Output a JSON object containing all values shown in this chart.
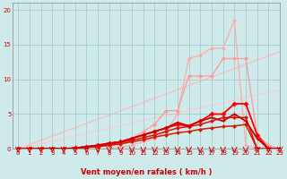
{
  "title": "",
  "xlabel": "Vent moyen/en rafales ( km/h )",
  "ylabel": "",
  "bg_color": "#ceeaea",
  "grid_color": "#aacccc",
  "xlim": [
    -0.5,
    23
  ],
  "ylim": [
    0,
    21
  ],
  "xticks": [
    0,
    1,
    2,
    3,
    4,
    5,
    6,
    7,
    8,
    9,
    10,
    11,
    12,
    13,
    14,
    15,
    16,
    17,
    18,
    19,
    20,
    21,
    22,
    23
  ],
  "yticks": [
    0,
    5,
    10,
    15,
    20
  ],
  "series": [
    {
      "x": [
        0,
        23
      ],
      "y": [
        0,
        14.0
      ],
      "color": "#ffbbbb",
      "lw": 0.9,
      "marker": null,
      "ms": 0,
      "zorder": 1
    },
    {
      "x": [
        0,
        23
      ],
      "y": [
        0,
        8.5
      ],
      "color": "#ffcccc",
      "lw": 0.9,
      "marker": null,
      "ms": 0,
      "zorder": 1
    },
    {
      "x": [
        0,
        1,
        2,
        3,
        4,
        5,
        6,
        7,
        8,
        9,
        10,
        11,
        12,
        13,
        14,
        15,
        16,
        17,
        18,
        19,
        20,
        21,
        22,
        23
      ],
      "y": [
        0,
        0,
        0,
        0,
        0,
        0,
        0,
        0,
        0,
        0.2,
        0.5,
        1.0,
        1.5,
        2.5,
        5.0,
        13.0,
        13.5,
        14.5,
        14.5,
        18.5,
        0.5,
        0,
        0,
        0
      ],
      "color": "#ffaaaa",
      "lw": 0.9,
      "marker": "D",
      "ms": 2.0,
      "zorder": 2
    },
    {
      "x": [
        0,
        1,
        2,
        3,
        4,
        5,
        6,
        7,
        8,
        9,
        10,
        11,
        12,
        13,
        14,
        15,
        16,
        17,
        18,
        19,
        20,
        21,
        22,
        23
      ],
      "y": [
        0,
        0,
        0,
        0,
        0,
        0,
        0.2,
        0.3,
        0.5,
        0.8,
        1.5,
        2.5,
        3.5,
        5.5,
        5.5,
        10.5,
        10.5,
        10.5,
        13.0,
        13.0,
        13.0,
        2.0,
        0.5,
        0
      ],
      "color": "#ff9999",
      "lw": 0.9,
      "marker": "D",
      "ms": 2.0,
      "zorder": 2
    },
    {
      "x": [
        0,
        1,
        2,
        3,
        4,
        5,
        6,
        7,
        8,
        9,
        10,
        11,
        12,
        13,
        14,
        15,
        16,
        17,
        18,
        19,
        20,
        21,
        22,
        23
      ],
      "y": [
        0,
        0,
        0,
        0,
        0,
        0.1,
        0.2,
        0.3,
        0.5,
        0.7,
        1.0,
        1.3,
        1.7,
        2.0,
        2.3,
        2.5,
        2.8,
        3.0,
        3.2,
        3.3,
        3.5,
        0,
        0,
        0
      ],
      "color": "#cc2200",
      "lw": 1.1,
      "marker": "D",
      "ms": 2.0,
      "zorder": 3
    },
    {
      "x": [
        0,
        1,
        2,
        3,
        4,
        5,
        6,
        7,
        8,
        9,
        10,
        11,
        12,
        13,
        14,
        15,
        16,
        17,
        18,
        19,
        20,
        21,
        22,
        23
      ],
      "y": [
        0,
        0,
        0,
        0,
        0,
        0.1,
        0.3,
        0.4,
        0.6,
        0.9,
        1.2,
        1.6,
        2.0,
        2.5,
        3.0,
        3.2,
        3.5,
        4.0,
        4.5,
        4.5,
        4.5,
        0,
        0,
        0
      ],
      "color": "#dd1111",
      "lw": 1.1,
      "marker": "D",
      "ms": 2.0,
      "zorder": 3
    },
    {
      "x": [
        0,
        1,
        2,
        3,
        4,
        5,
        6,
        7,
        8,
        9,
        10,
        11,
        12,
        13,
        14,
        15,
        16,
        17,
        18,
        19,
        20,
        21,
        22,
        23
      ],
      "y": [
        0,
        0,
        0,
        0,
        0,
        0.1,
        0.3,
        0.5,
        0.8,
        1.0,
        1.5,
        2.0,
        2.5,
        3.0,
        3.5,
        3.3,
        4.0,
        5.0,
        5.0,
        6.5,
        6.5,
        2.0,
        0,
        0
      ],
      "color": "#ff0000",
      "lw": 1.3,
      "marker": "D",
      "ms": 2.5,
      "zorder": 4
    },
    {
      "x": [
        0,
        1,
        2,
        3,
        4,
        5,
        6,
        7,
        8,
        9,
        10,
        11,
        12,
        13,
        14,
        15,
        16,
        17,
        18,
        19,
        20,
        21,
        22,
        23
      ],
      "y": [
        0,
        0,
        0,
        0,
        0,
        0.1,
        0.3,
        0.5,
        0.8,
        1.0,
        1.5,
        2.0,
        2.5,
        3.0,
        3.8,
        3.3,
        4.0,
        4.5,
        4.0,
        5.0,
        4.0,
        1.5,
        0,
        0
      ],
      "color": "#cc0000",
      "lw": 1.3,
      "marker": "+",
      "ms": 3.5,
      "zorder": 4
    }
  ],
  "arrow_color": "#cc0000",
  "tick_color": "#cc0000",
  "xlabel_color": "#cc0000",
  "xlabel_fontsize": 6.0,
  "tick_fontsize": 5.0
}
